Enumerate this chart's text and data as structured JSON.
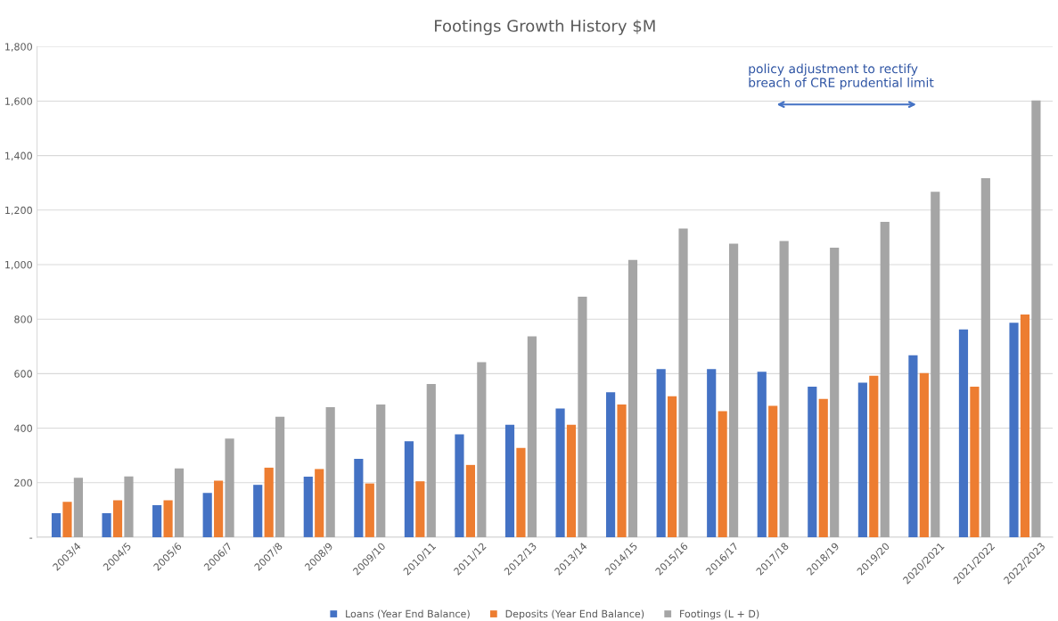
{
  "chart_data": {
    "type": "bar",
    "title": "Footings Growth History $M",
    "categories": [
      "2003/4",
      "2004/5",
      "2005/6",
      "2006/7",
      "2007/8",
      "2008/9",
      "2009/10",
      "2010/11",
      "2011/12",
      "2012/13",
      "2013/14",
      "2014/15",
      "2015/16",
      "2016/17",
      "2017/18",
      "2018/19",
      "2019/20",
      "2020/2021",
      "2021/2022",
      "2022/2023"
    ],
    "series": [
      {
        "name": "Loans (Year End Balance)",
        "color": "#4472c4",
        "values": [
          88,
          88,
          117,
          162,
          192,
          222,
          287,
          352,
          377,
          412,
          472,
          532,
          617,
          617,
          607,
          552,
          567,
          667,
          762,
          787
        ]
      },
      {
        "name": "Deposits (Year End Balance)",
        "color": "#ed7d31",
        "values": [
          130,
          135,
          135,
          207,
          255,
          250,
          197,
          205,
          265,
          327,
          412,
          487,
          517,
          462,
          482,
          507,
          592,
          602,
          552,
          817
        ]
      },
      {
        "name": "Footings (L + D)",
        "color": "#a5a5a5",
        "values": [
          218,
          223,
          252,
          362,
          442,
          477,
          487,
          562,
          642,
          737,
          882,
          1017,
          1132,
          1077,
          1087,
          1062,
          1157,
          1267,
          1317,
          1602
        ]
      }
    ],
    "ylim": [
      0,
      1800
    ],
    "yticks": [
      {
        "value": 0,
        "label": "-"
      },
      {
        "value": 200,
        "label": "200"
      },
      {
        "value": 400,
        "label": "400"
      },
      {
        "value": 600,
        "label": "600"
      },
      {
        "value": 800,
        "label": "800"
      },
      {
        "value": 1000,
        "label": "1,000"
      },
      {
        "value": 1200,
        "label": "1,200"
      },
      {
        "value": 1400,
        "label": "1,400"
      },
      {
        "value": 1600,
        "label": "1,600"
      },
      {
        "value": 1800,
        "label": "1,800"
      }
    ],
    "grid": "y",
    "legend": "bottom",
    "annotations": [
      "policy adjustment to rectify\nbreach of CRE prudential limit"
    ]
  }
}
